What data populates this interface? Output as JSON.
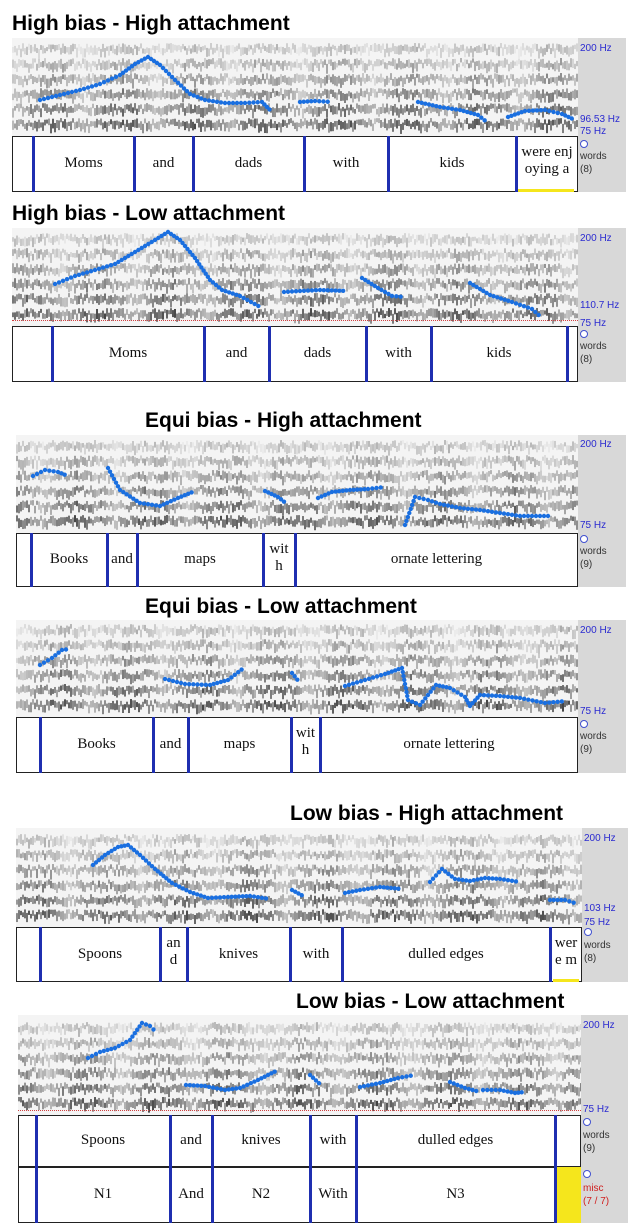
{
  "panels": [
    {
      "title": "High bias - High attachment",
      "hz_top": "200 Hz",
      "hz_mid": "96.53 Hz",
      "hz_bot": "75 Hz",
      "tier_name": "words",
      "tier_count": "(8)",
      "words": [
        "Moms",
        "and",
        "dads",
        "with",
        "kids",
        "were enj oying a"
      ]
    },
    {
      "title": "High bias - Low attachment",
      "hz_top": "200 Hz",
      "hz_mid": "110.7 Hz",
      "hz_bot": "75 Hz",
      "tier_name": "words",
      "tier_count": "(8)",
      "words": [
        "Moms",
        "and",
        "dads",
        "with",
        "kids"
      ]
    },
    {
      "title": "Equi bias - High attachment",
      "hz_top": "200 Hz",
      "hz_bot": "75 Hz",
      "tier_name": "words",
      "tier_count": "(9)",
      "words": [
        "Books",
        "and",
        "maps",
        "wit h",
        "ornate lettering"
      ]
    },
    {
      "title": "Equi bias - Low attachment",
      "hz_top": "200 Hz",
      "hz_bot": "75 Hz",
      "tier_name": "words",
      "tier_count": "(9)",
      "words": [
        "Books",
        "and",
        "maps",
        "wit h",
        "ornate lettering"
      ]
    },
    {
      "title": "Low bias - High attachment",
      "hz_top": "200 Hz",
      "hz_mid": "103 Hz",
      "hz_bot": "75 Hz",
      "tier_name": "words",
      "tier_count": "(8)",
      "words": [
        "Spoons",
        "an d",
        "knives",
        "with",
        "dulled edges",
        "wer e m"
      ]
    },
    {
      "title": "Low bias - Low attachment",
      "hz_top": "200 Hz",
      "hz_bot": "75 Hz",
      "tier_name": "words",
      "tier_count": "(9)",
      "words": [
        "Spoons",
        "and",
        "knives",
        "with",
        "dulled edges"
      ],
      "tier2_name": "misc",
      "tier2_count": "(7 / 7)",
      "tier2_words": [
        "N1",
        "And",
        "N2",
        "With",
        "N3"
      ]
    }
  ],
  "colors": {
    "boundary": "#1f2fb0",
    "pitch": "#1a6fe0",
    "hz_label": "#2a2ad0",
    "misc_label": "#d02020",
    "highlight": "#f5e61c"
  }
}
